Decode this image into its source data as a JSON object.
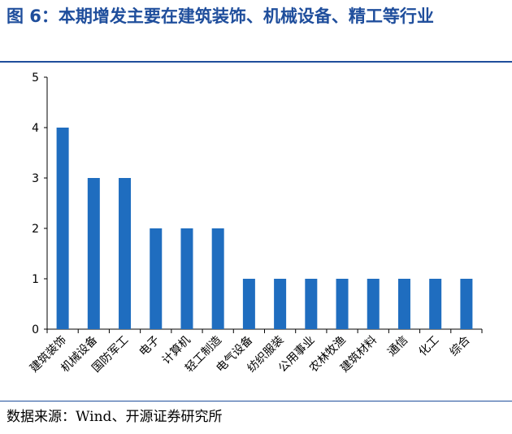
{
  "figure": {
    "title": "图 6：本期增发主要在建筑装饰、机械设备、精工等行业",
    "source": "数据来源：Wind、开源证券研究所"
  },
  "colors": {
    "bar": "#1f6dbf",
    "accent": "#1f4e9c"
  },
  "chart_data": {
    "type": "bar",
    "categories": [
      "建筑装饰",
      "机械设备",
      "国防军工",
      "电子",
      "计算机",
      "轻工制造",
      "电气设备",
      "纺织服装",
      "公用事业",
      "农林牧渔",
      "建筑材料",
      "通信",
      "化工",
      "综合"
    ],
    "values": [
      4,
      3,
      3,
      2,
      2,
      2,
      1,
      1,
      1,
      1,
      1,
      1,
      1,
      1
    ],
    "yticks": [
      0,
      1,
      2,
      3,
      4,
      5
    ],
    "ylim": [
      0,
      5
    ],
    "title": "",
    "xlabel": "",
    "ylabel": "",
    "grid": false,
    "legend": "none"
  }
}
